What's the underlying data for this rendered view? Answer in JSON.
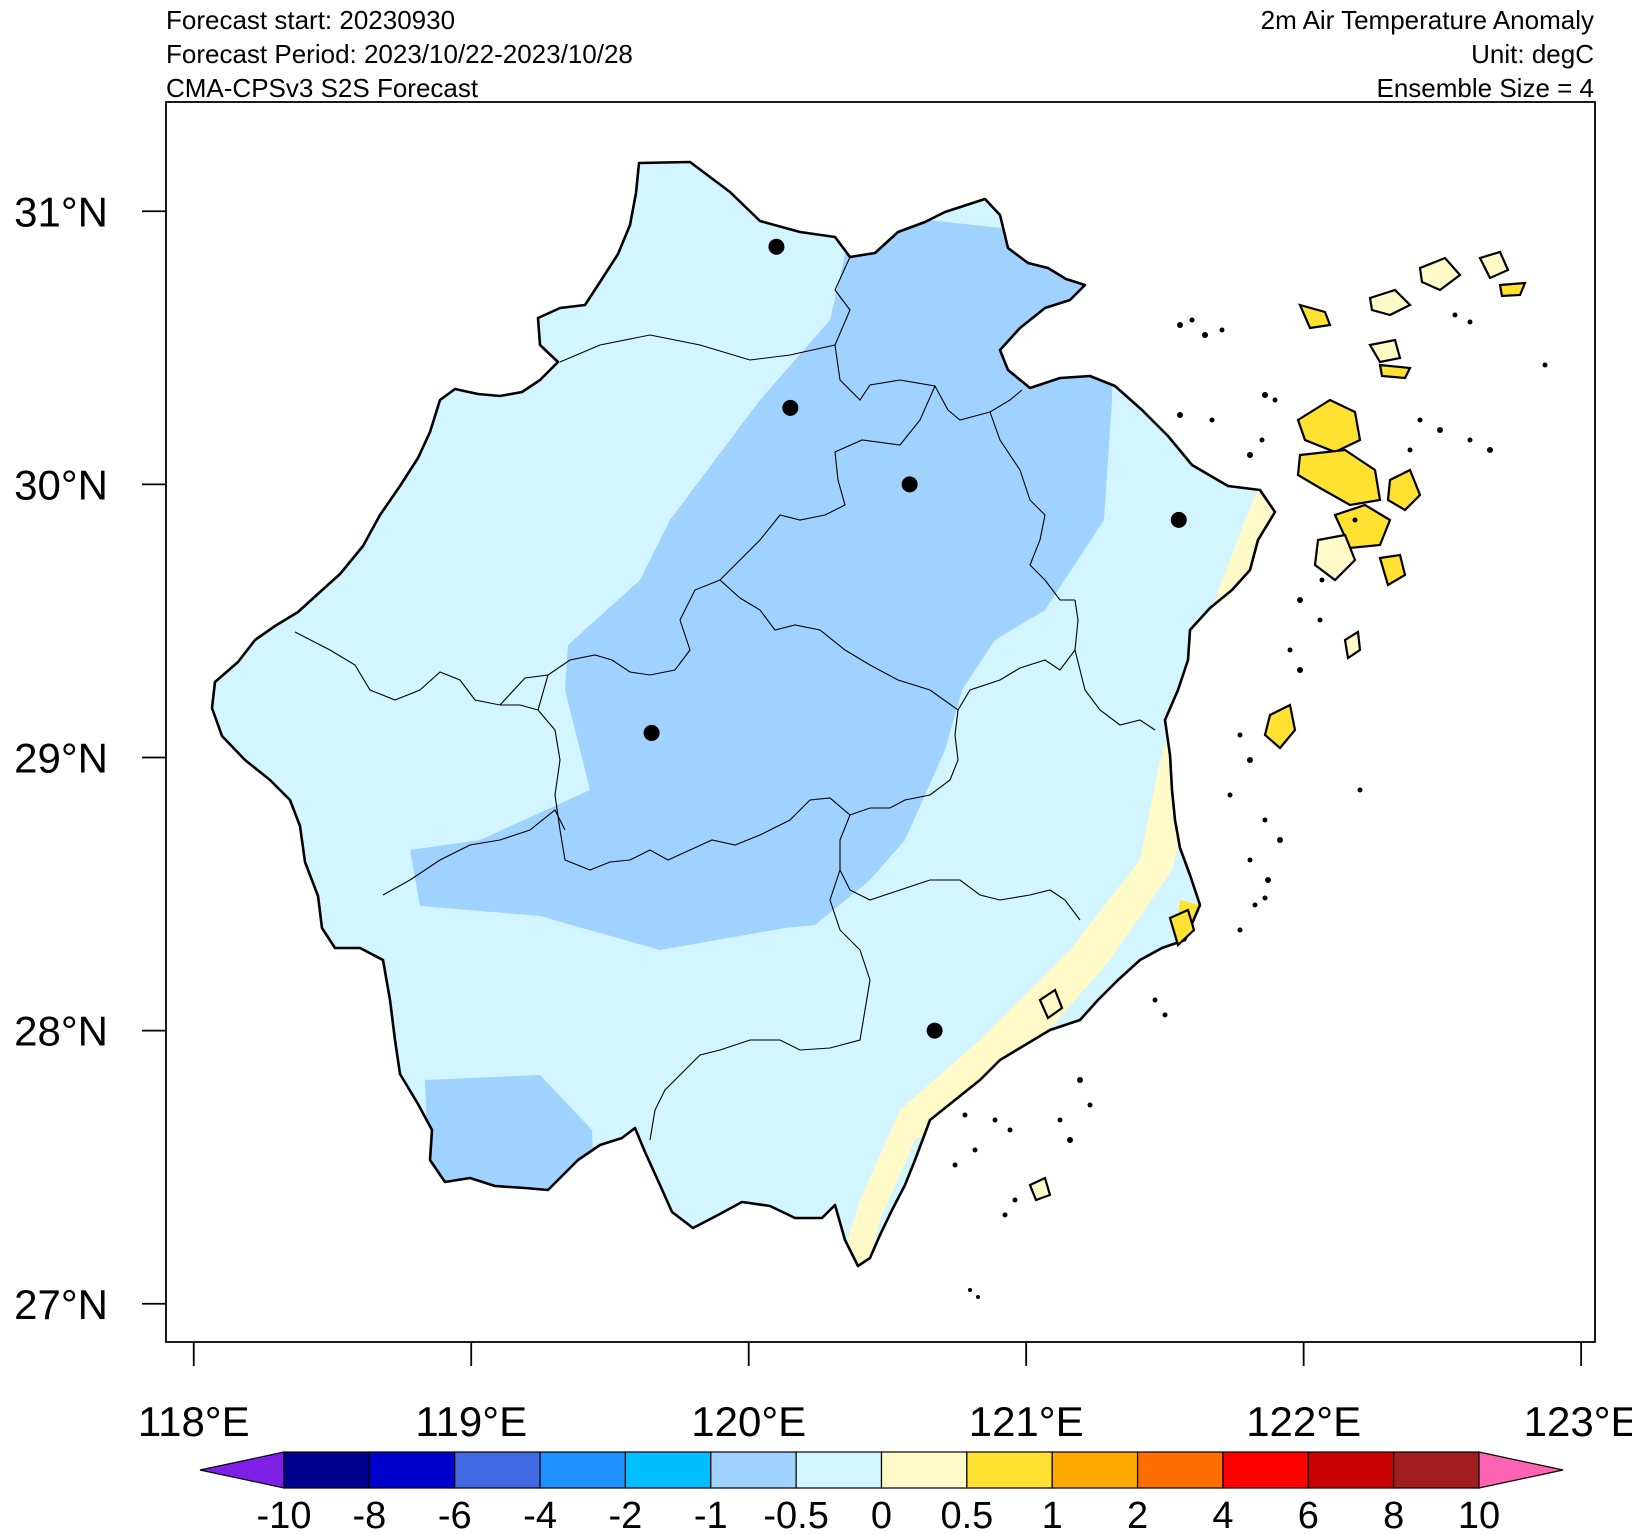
{
  "header": {
    "left": [
      "Forecast start: 20230930",
      "Forecast Period: 2023/10/22-2023/10/28",
      "CMA-CPSv3 S2S Forecast"
    ],
    "right": [
      "2m Air Temperature Anomaly",
      "Unit: degC",
      "Ensemble Size = 4"
    ]
  },
  "map": {
    "region": "Zhejiang",
    "lon_range": [
      117.9,
      123.05
    ],
    "lat_range": [
      26.86,
      31.4
    ],
    "lon_ticks": [
      {
        "value": 118,
        "label": "118°E"
      },
      {
        "value": 119,
        "label": "119°E"
      },
      {
        "value": 120,
        "label": "120°E"
      },
      {
        "value": 121,
        "label": "121°E"
      },
      {
        "value": 122,
        "label": "122°E"
      },
      {
        "value": 123,
        "label": "123°E"
      }
    ],
    "lat_ticks": [
      {
        "value": 27,
        "label": "27°N"
      },
      {
        "value": 28,
        "label": "28°N"
      },
      {
        "value": 29,
        "label": "29°N"
      },
      {
        "value": 30,
        "label": "30°N"
      },
      {
        "value": 31,
        "label": "31°N"
      }
    ],
    "stations": [
      {
        "lon": 120.1,
        "lat": 30.87
      },
      {
        "lon": 120.15,
        "lat": 30.28
      },
      {
        "lon": 120.58,
        "lat": 30.0
      },
      {
        "lon": 121.55,
        "lat": 29.87
      },
      {
        "lon": 119.65,
        "lat": 29.09
      },
      {
        "lon": 120.67,
        "lat": 28.0
      }
    ]
  },
  "colorbar": {
    "levels": [
      "-10",
      "-8",
      "-6",
      "-4",
      "-2",
      "-1",
      "-0.5",
      "0",
      "0.5",
      "1",
      "2",
      "4",
      "6",
      "8",
      "10"
    ],
    "colors": [
      "#7f1fe6",
      "#00008f",
      "#0000cd",
      "#4169e1",
      "#1e90ff",
      "#00bfff",
      "#a0d2ff",
      "#d2f5ff",
      "#fffac8",
      "#ffe132",
      "#ffaa00",
      "#ff6e00",
      "#ff0000",
      "#c80000",
      "#a01e1e",
      "#ff64b4"
    ]
  },
  "fill_colors": {
    "neg_1_to_neg_0_5": "#a0d2ff",
    "neg_0_5_to_0": "#d2f5ff",
    "0_to_0_5": "#fffac8",
    "0_5_to_1": "#ffe132"
  }
}
